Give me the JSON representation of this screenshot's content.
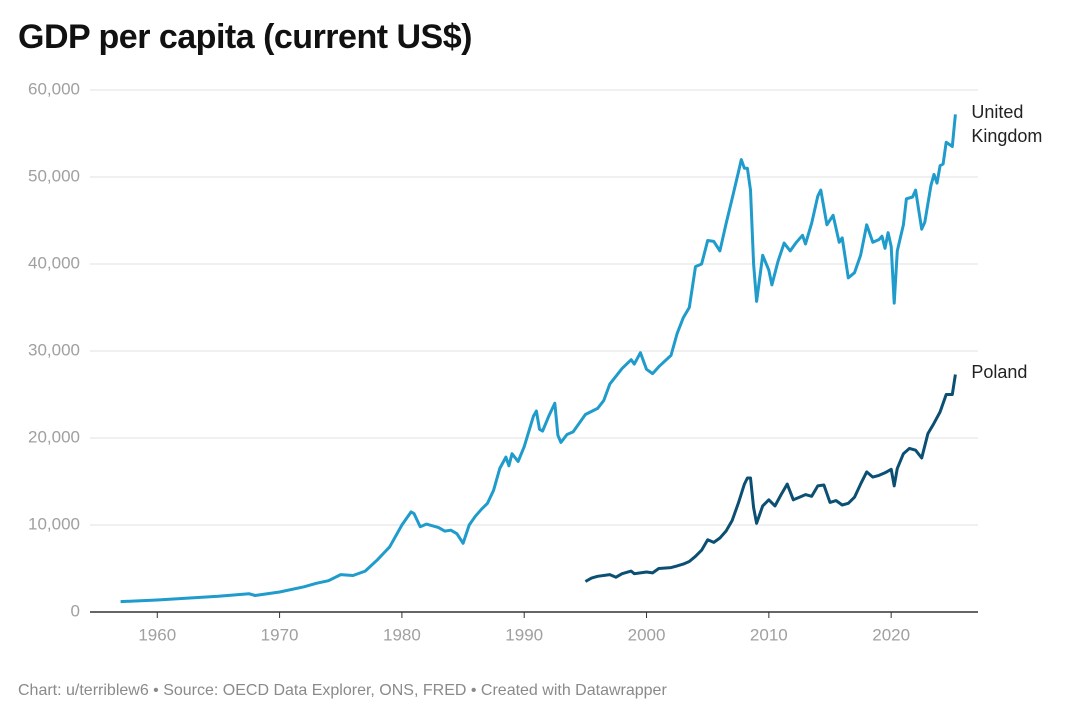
{
  "chart_data": {
    "type": "line",
    "title": "GDP per capita (current US$)",
    "footer": "Chart: u/terriblew6 • Source: OECD Data Explorer, ONS, FRED • Created with Datawrapper",
    "xlim": [
      1954.5,
      2027.1
    ],
    "xticks": [
      1960,
      1970,
      1980,
      1990,
      2000,
      2010,
      2020
    ],
    "ylim": [
      0,
      60000
    ],
    "yticks": [
      0,
      {
        "value": 10000,
        "label": "10,000"
      },
      {
        "value": 20000,
        "label": "20,000"
      },
      {
        "value": 30000,
        "label": "30,000"
      },
      {
        "value": 40000,
        "label": "40,000"
      },
      {
        "value": 50000,
        "label": "50,000"
      },
      {
        "value": 60000,
        "label": "60,000"
      }
    ],
    "grid": true,
    "series": [
      {
        "name": "United Kingdom",
        "color": "#1f9bcc",
        "x": [
          1957,
          1960,
          1965,
          1967.5,
          1968,
          1970,
          1972,
          1973,
          1974,
          1975,
          1976,
          1977,
          1978,
          1979,
          1980,
          1980.75,
          1981,
          1981.5,
          1982,
          1983,
          1983.5,
          1984,
          1984.5,
          1985,
          1985.5,
          1986,
          1986.5,
          1987,
          1987.5,
          1988,
          1988.5,
          1988.75,
          1989,
          1989.5,
          1990,
          1990.75,
          1991,
          1991.25,
          1991.5,
          1992,
          1992.5,
          1992.75,
          1993,
          1993.5,
          1994,
          1995,
          1996,
          1996.5,
          1997,
          1998,
          1998.75,
          1999,
          1999.5,
          2000,
          2000.5,
          2001,
          2002,
          2002.5,
          2003,
          2003.5,
          2004,
          2004.5,
          2005,
          2005.5,
          2006,
          2006.5,
          2007,
          2007.5,
          2007.75,
          2008,
          2008.25,
          2008.5,
          2008.75,
          2009,
          2009.5,
          2010,
          2010.25,
          2010.75,
          2011.25,
          2011.75,
          2012.25,
          2012.75,
          2013,
          2013.5,
          2014,
          2014.25,
          2014.75,
          2015.25,
          2015.75,
          2016,
          2016.5,
          2017,
          2017.5,
          2018,
          2018.5,
          2019,
          2019.25,
          2019.5,
          2019.75,
          2020,
          2020.25,
          2020.5,
          2021,
          2021.25,
          2021.75,
          2022,
          2022.5,
          2022.75,
          2023.25,
          2023.5,
          2023.75,
          2024,
          2024.25,
          2024.5,
          2025,
          2025.25
        ],
        "values": [
          1200,
          1380,
          1800,
          2100,
          1900,
          2300,
          2900,
          3300,
          3600,
          4300,
          4200,
          4700,
          6000,
          7500,
          10000,
          11500,
          11300,
          9800,
          10100,
          9700,
          9300,
          9400,
          9000,
          7900,
          10000,
          11000,
          11800,
          12500,
          14000,
          16500,
          17800,
          16800,
          18200,
          17300,
          19000,
          22500,
          23100,
          21000,
          20800,
          22500,
          24000,
          20300,
          19500,
          20400,
          20700,
          22700,
          23400,
          24300,
          26200,
          28000,
          29000,
          28500,
          29800,
          27900,
          27400,
          28200,
          29500,
          32000,
          33800,
          35000,
          39700,
          40000,
          42700,
          42600,
          41500,
          44600,
          47500,
          50500,
          52000,
          51000,
          51000,
          48500,
          40000,
          35700,
          41000,
          39300,
          37600,
          40300,
          42400,
          41500,
          42500,
          43300,
          42300,
          44700,
          47800,
          48500,
          44500,
          45600,
          42500,
          43000,
          38400,
          39000,
          41000,
          44500,
          42500,
          42800,
          43200,
          41800,
          43600,
          42000,
          35500,
          41500,
          44500,
          47500,
          47700,
          48500,
          44000,
          44800,
          49000,
          50300,
          49300,
          51300,
          51500,
          54000,
          53500,
          57200
        ]
      },
      {
        "name": "Poland",
        "color": "#0b4f73",
        "x": [
          1995,
          1995.5,
          1996,
          1997,
          1997.5,
          1998,
          1998.75,
          1999,
          2000,
          2000.5,
          2001,
          2002,
          2002.5,
          2003,
          2003.5,
          2004,
          2004.5,
          2005,
          2005.5,
          2006,
          2006.5,
          2007,
          2007.5,
          2008,
          2008.25,
          2008.5,
          2008.75,
          2009,
          2009.5,
          2010,
          2010.5,
          2011,
          2011.5,
          2012,
          2012.5,
          2013,
          2013.5,
          2014,
          2014.5,
          2015,
          2015.5,
          2016,
          2016.5,
          2017,
          2017.5,
          2018,
          2018.5,
          2019,
          2019.5,
          2020,
          2020.25,
          2020.5,
          2021,
          2021.5,
          2022,
          2022.5,
          2023,
          2023.5,
          2024,
          2024.5,
          2025,
          2025.25
        ],
        "values": [
          3500,
          3900,
          4100,
          4300,
          4000,
          4400,
          4700,
          4400,
          4600,
          4500,
          5000,
          5100,
          5300,
          5500,
          5800,
          6400,
          7100,
          8300,
          8000,
          8500,
          9300,
          10500,
          12500,
          14700,
          15400,
          15400,
          12000,
          10200,
          12200,
          12900,
          12200,
          13500,
          14700,
          12900,
          13200,
          13500,
          13300,
          14500,
          14600,
          12600,
          12800,
          12300,
          12500,
          13200,
          14700,
          16100,
          15500,
          15700,
          16000,
          16400,
          14500,
          16500,
          18200,
          18800,
          18600,
          17700,
          20500,
          21700,
          23000,
          25000,
          25000,
          27300
        ]
      }
    ]
  }
}
